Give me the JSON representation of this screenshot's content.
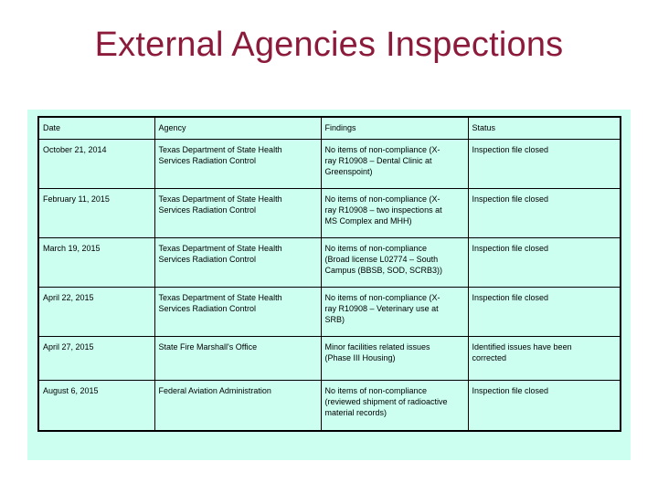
{
  "slide": {
    "title": "External Agencies Inspections"
  },
  "table": {
    "headers": [
      "Date",
      "Agency",
      "Findings",
      "Status"
    ],
    "rows": [
      [
        "October 21, 2014",
        "Texas Department of State Health\nServices Radiation Control",
        "No items of non-compliance (X-\nray R10908 – Dental Clinic at\nGreenspoint)",
        "Inspection file closed"
      ],
      [
        "February 11, 2015",
        "Texas Department of State Health\nServices Radiation Control",
        "No items of non-compliance (X-\nray R10908 – two inspections at\nMS Complex and MHH)",
        "Inspection file closed"
      ],
      [
        "March 19, 2015",
        "Texas Department of State Health\nServices Radiation Control",
        "No items of non-compliance\n(Broad license L02774 – South\nCampus (BBSB, SOD, SCRB3))",
        "Inspection file closed"
      ],
      [
        "April 22, 2015",
        "Texas Department of State Health\nServices Radiation Control",
        "No items of non-compliance (X-\nray R10908 – Veterinary use at\nSRB)",
        "Inspection file closed"
      ],
      [
        "April 27, 2015",
        "State Fire Marshall's Office",
        "Minor facilities related issues\n(Phase III Housing)",
        "Identified issues have been\ncorrected"
      ],
      [
        "August 6, 2015",
        "Federal Aviation Administration",
        "No items of non-compliance\n(reviewed shipment of radioactive\nmaterial records)",
        "Inspection file closed"
      ]
    ]
  }
}
